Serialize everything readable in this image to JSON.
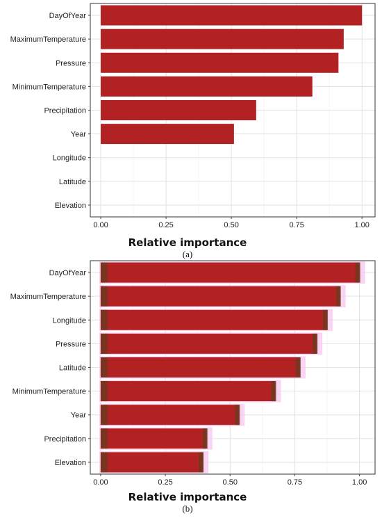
{
  "chart_data": [
    {
      "type": "bar",
      "orientation": "horizontal",
      "panel_label": "(a)",
      "categories": [
        "DayOfYear",
        "MaximumTemperature",
        "Pressure",
        "MinimumTemperature",
        "Precipitation",
        "Year",
        "Longitude",
        "Latitude",
        "Elevation"
      ],
      "values": [
        1.0,
        0.93,
        0.91,
        0.81,
        0.595,
        0.51,
        0.0,
        0.0,
        0.0
      ],
      "xlabel": "Relative importance",
      "ylabel": "",
      "xlim": [
        -0.04,
        1.05
      ],
      "xticks": [
        "0.00",
        "0.25",
        "0.50",
        "0.75",
        "1.00"
      ],
      "grid": true,
      "bar_color": "#b22222"
    },
    {
      "type": "bar",
      "orientation": "horizontal",
      "panel_label": "(b)",
      "categories": [
        "DayOfYear",
        "MaximumTemperature",
        "Longitude",
        "Pressure",
        "Latitude",
        "MinimumTemperature",
        "Year",
        "Precipitation",
        "Elevation"
      ],
      "values": [
        1.0,
        0.925,
        0.875,
        0.835,
        0.77,
        0.675,
        0.535,
        0.41,
        0.395
      ],
      "xlabel": "Relative importance",
      "ylabel": "",
      "xlim": [
        -0.04,
        1.06
      ],
      "xticks": [
        "0.00",
        "0.25",
        "0.50",
        "0.75",
        "1.00"
      ],
      "grid": true,
      "bar_color": "#b22222",
      "error_color": "#6b3a1f",
      "band_color": "#f7c6ef"
    }
  ]
}
